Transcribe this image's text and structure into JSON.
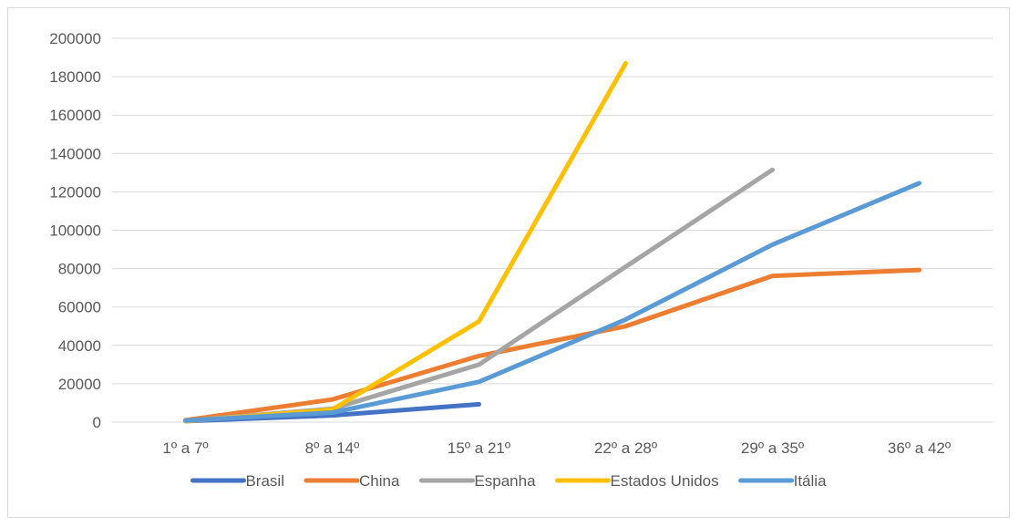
{
  "chart_data": {
    "type": "line",
    "categories": [
      "1º a 7º",
      "8º a 14º",
      "15º a 21º",
      "22º a 28º",
      "29º a 35º",
      "36º a 42º"
    ],
    "ylim": [
      0,
      200000
    ],
    "yticks": [
      0,
      20000,
      40000,
      60000,
      80000,
      100000,
      120000,
      140000,
      160000,
      180000,
      200000
    ],
    "grid": true,
    "legend": "bottom",
    "series": [
      {
        "name": "Brasil",
        "color": "#4472c4",
        "values": [
          500,
          3500,
          9300,
          null,
          null,
          null
        ]
      },
      {
        "name": "China",
        "color": "#ed7d31",
        "values": [
          1000,
          11800,
          34500,
          50000,
          76200,
          79300
        ]
      },
      {
        "name": "Espanha",
        "color": "#a5a5a5",
        "values": [
          700,
          7000,
          30000,
          81000,
          131500,
          null
        ]
      },
      {
        "name": "Estados Unidos",
        "color": "#ffc000",
        "values": [
          500,
          6500,
          52500,
          187000,
          null,
          null
        ]
      },
      {
        "name": "Itália",
        "color": "#5b9bd5",
        "values": [
          800,
          5000,
          21000,
          53500,
          92500,
          124500
        ]
      }
    ]
  }
}
